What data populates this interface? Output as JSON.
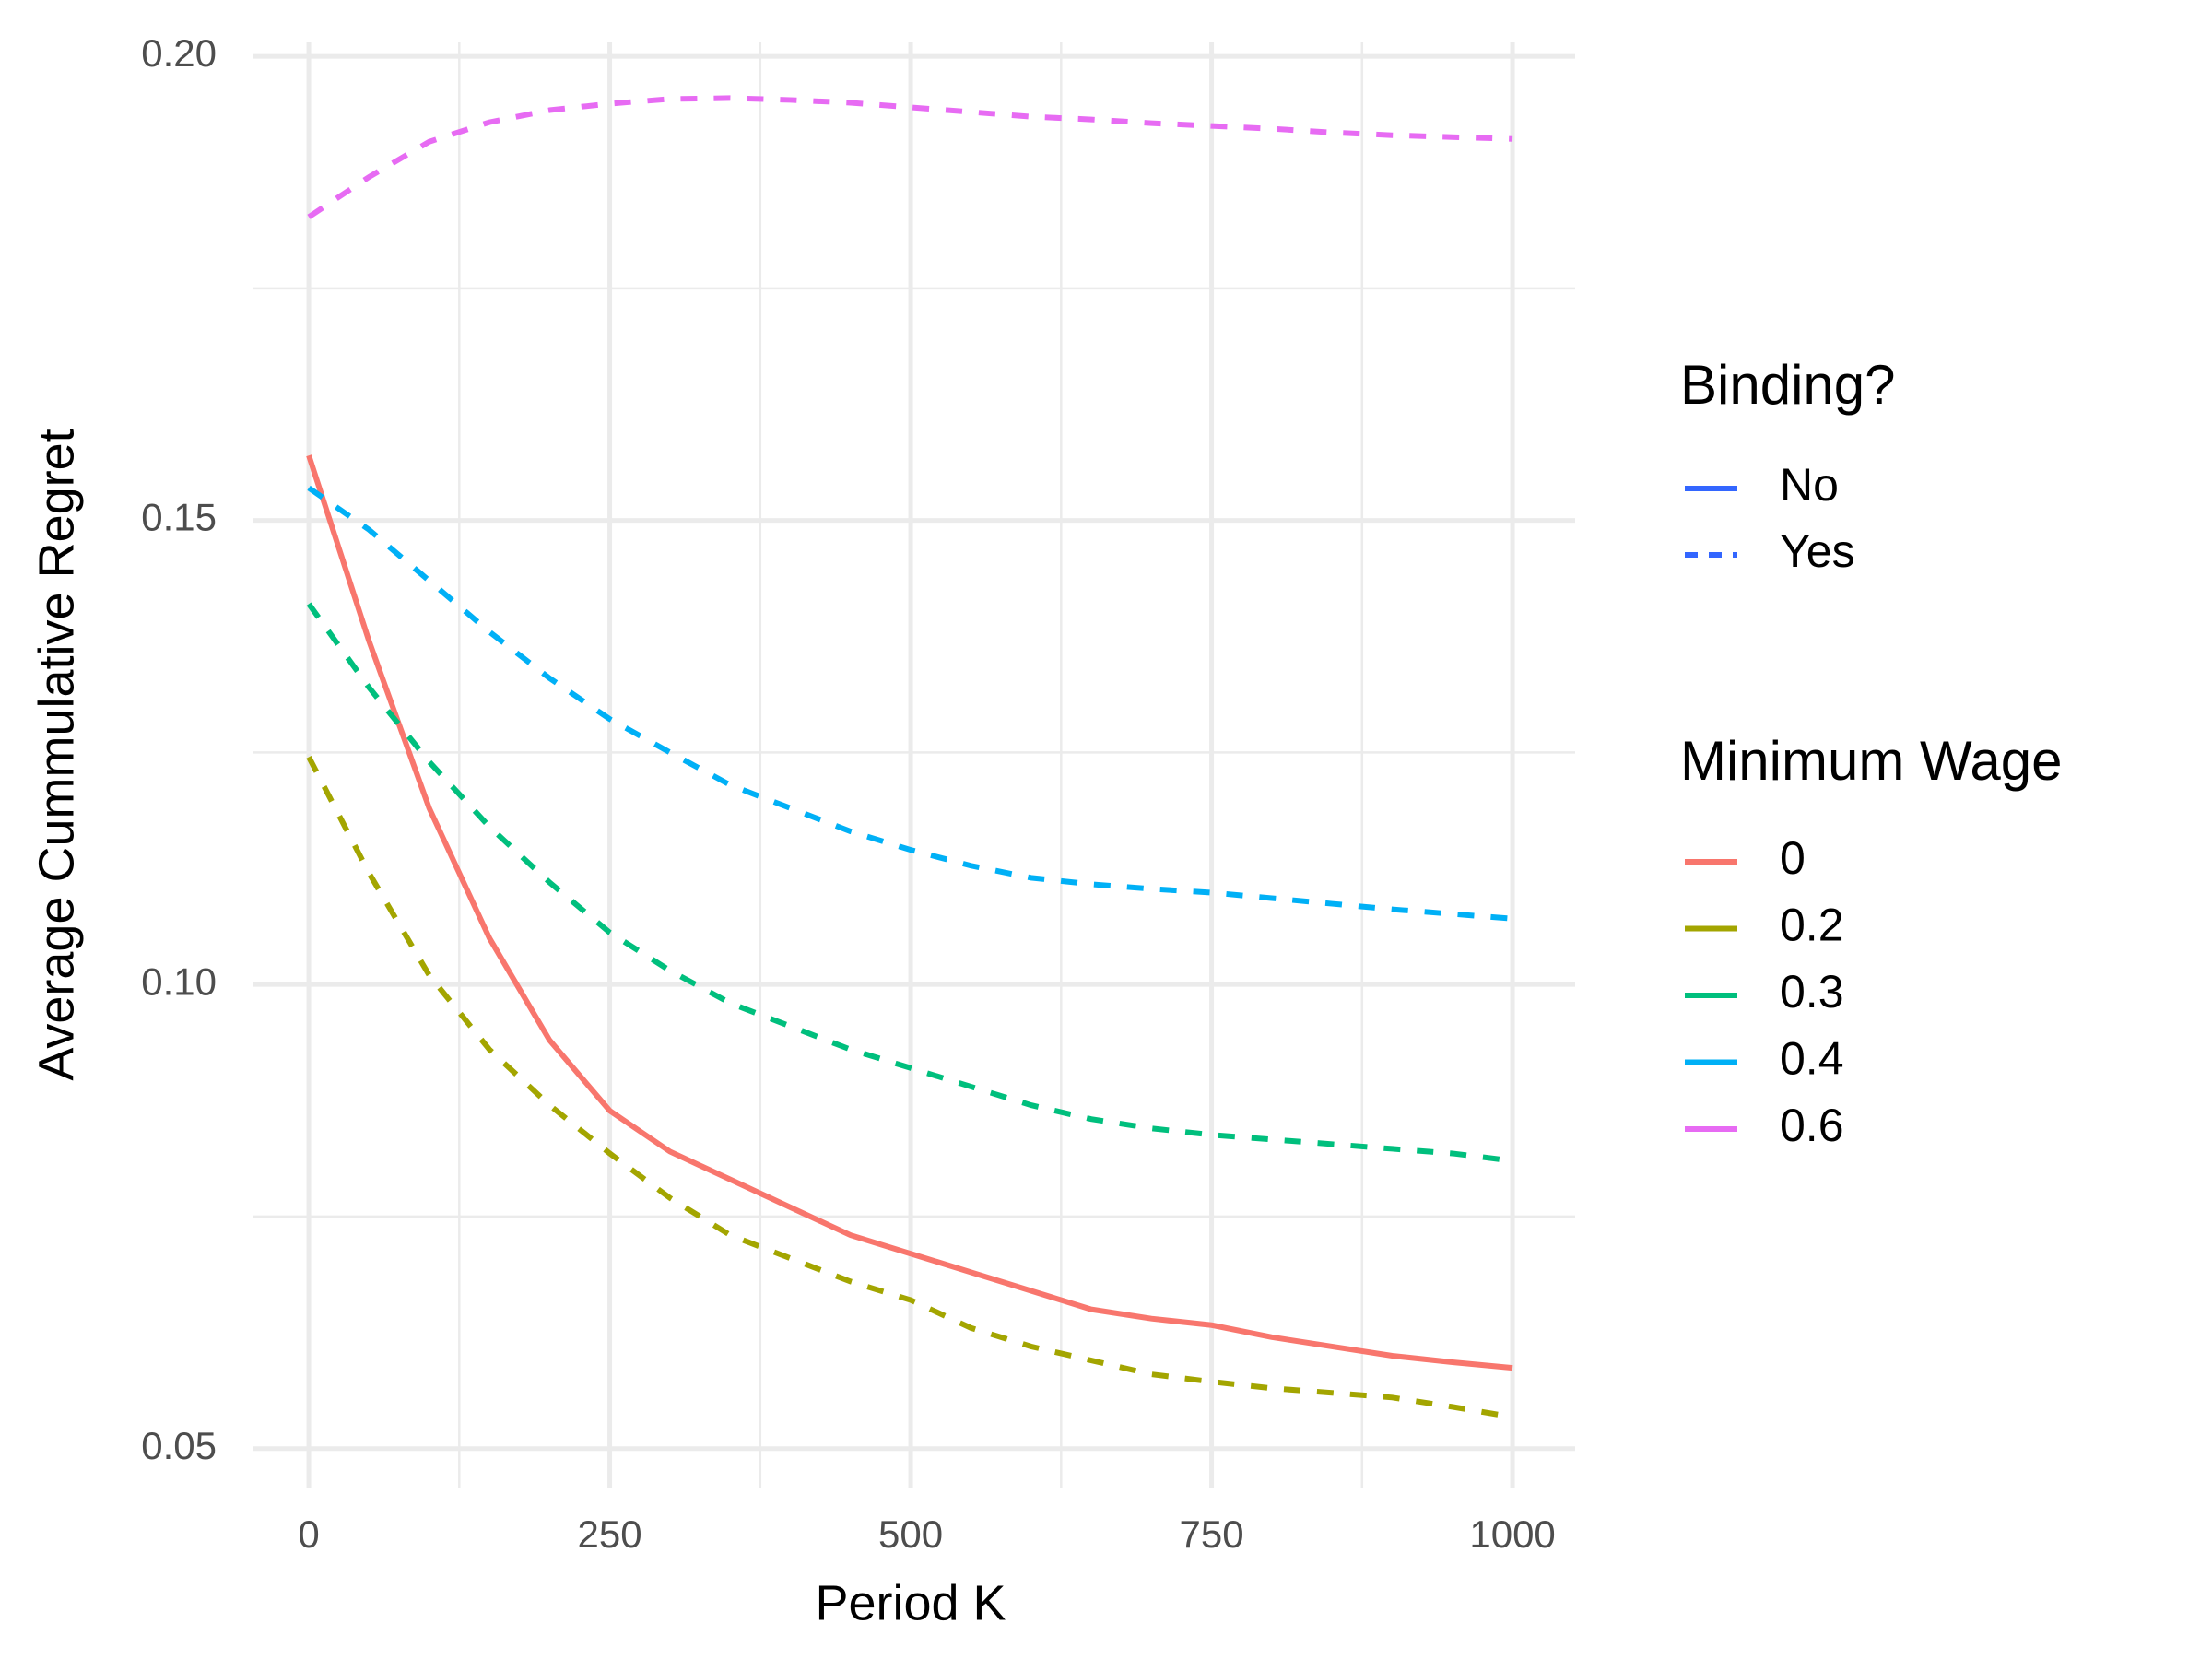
{
  "chart_data": {
    "type": "line",
    "x_label": "Period K",
    "y_label": "Average Cummulative Regret",
    "x": [
      0,
      50,
      100,
      150,
      200,
      250,
      300,
      350,
      400,
      450,
      500,
      550,
      600,
      650,
      700,
      750,
      800,
      850,
      900,
      950,
      1000
    ],
    "series": [
      {
        "name": "0",
        "color": "#F8766D",
        "linetype": "solid",
        "values": [
          0.157,
          0.137,
          0.119,
          0.105,
          0.094,
          0.0864,
          0.082,
          0.079,
          0.076,
          0.073,
          0.071,
          0.069,
          0.067,
          0.065,
          0.064,
          0.0633,
          0.062,
          0.061,
          0.06,
          0.0593,
          0.0587
        ]
      },
      {
        "name": "0.2",
        "color": "#A3A500",
        "linetype": "dashed",
        "values": [
          0.1245,
          0.112,
          0.101,
          0.093,
          0.087,
          0.0818,
          0.077,
          0.073,
          0.0705,
          0.068,
          0.066,
          0.063,
          0.061,
          0.0595,
          0.058,
          0.0572,
          0.0565,
          0.056,
          0.0555,
          0.0545,
          0.0534
        ]
      },
      {
        "name": "0.3",
        "color": "#00BF7D",
        "linetype": "dashed",
        "values": [
          0.141,
          0.132,
          0.124,
          0.117,
          0.111,
          0.1056,
          0.1015,
          0.098,
          0.0955,
          0.093,
          0.091,
          0.089,
          0.087,
          0.0855,
          0.0845,
          0.0838,
          0.0833,
          0.0828,
          0.0823,
          0.0818,
          0.081
        ]
      },
      {
        "name": "0.4",
        "color": "#00B0F6",
        "linetype": "dashed",
        "values": [
          0.1535,
          0.149,
          0.1435,
          0.138,
          0.133,
          0.1286,
          0.125,
          0.1215,
          0.119,
          0.1165,
          0.1145,
          0.1128,
          0.1115,
          0.1108,
          0.1103,
          0.1099,
          0.1093,
          0.1087,
          0.1081,
          0.1076,
          0.1071
        ]
      },
      {
        "name": "0.6",
        "color": "#E76BF3",
        "linetype": "dashed",
        "values": [
          0.1827,
          0.187,
          0.1908,
          0.1929,
          0.1942,
          0.1949,
          0.1954,
          0.1955,
          0.1953,
          0.195,
          0.1945,
          0.194,
          0.1935,
          0.1932,
          0.1928,
          0.1925,
          0.1922,
          0.1918,
          0.1915,
          0.1913,
          0.1911
        ]
      }
    ],
    "xlim": [
      -46,
      1052
    ],
    "ylim": [
      0.0457,
      0.2015
    ],
    "xticks": [
      0,
      250,
      500,
      750,
      1000
    ],
    "yticks": [
      {
        "value": 0.05,
        "label": "0.05"
      },
      {
        "value": 0.1,
        "label": "0.10"
      },
      0.15,
      {
        "value": 0.2,
        "label": "0.20"
      }
    ],
    "x_minor_grid": [
      125,
      375,
      625,
      875
    ],
    "y_minor_grid": [
      0.075,
      0.125,
      0.175
    ],
    "grid": true,
    "linetype_legend": {
      "title": "Binding?",
      "color": "#3366FF",
      "entries": [
        "No",
        "Yes"
      ],
      "linetypes": [
        "solid",
        "dashed"
      ]
    },
    "color_legend_title": "Minimum Wage"
  }
}
